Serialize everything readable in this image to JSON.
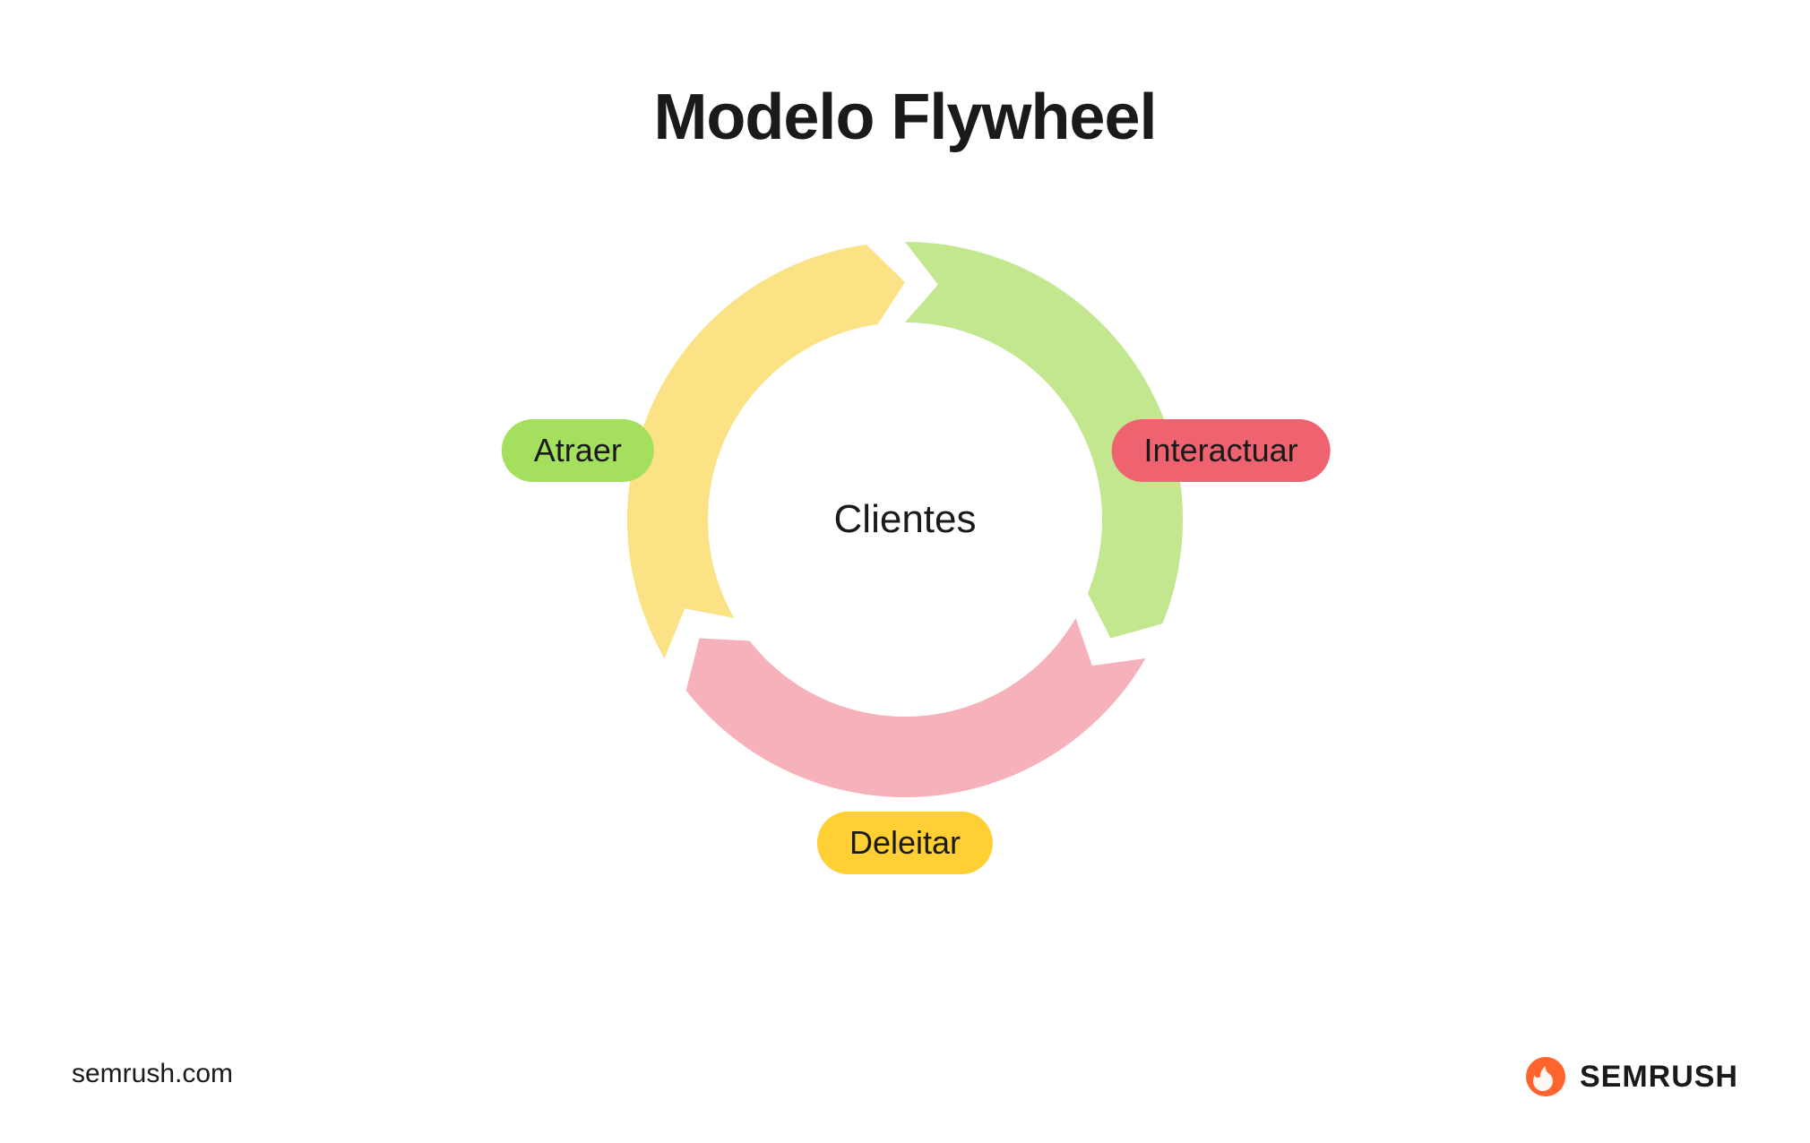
{
  "title": "Modelo Flywheel",
  "center_label": "Clientes",
  "diagram": {
    "type": "flywheel",
    "inner_radius": 220,
    "outer_radius": 310,
    "background_color": "#ffffff",
    "segments": [
      {
        "key": "atraer",
        "label": "Atraer",
        "arc_color": "#c2e78e",
        "pill_color": "#a4df5e",
        "start_deg": -90,
        "end_deg": 30
      },
      {
        "key": "interactuar",
        "label": "Interactuar",
        "arc_color": "#f7b1bb",
        "pill_color": "#ef626f",
        "start_deg": 30,
        "end_deg": 150
      },
      {
        "key": "deleitar",
        "label": "Deleitar",
        "arc_color": "#fbe285",
        "pill_color": "#ffcf33",
        "start_deg": 150,
        "end_deg": 270
      }
    ],
    "arrow_notch_deg": 8,
    "title_fontsize": 72,
    "label_fontsize": 36,
    "center_fontsize": 44
  },
  "footer": {
    "url": "semrush.com",
    "brand": "SEMRUSH",
    "brand_accent": "#ff642d"
  }
}
